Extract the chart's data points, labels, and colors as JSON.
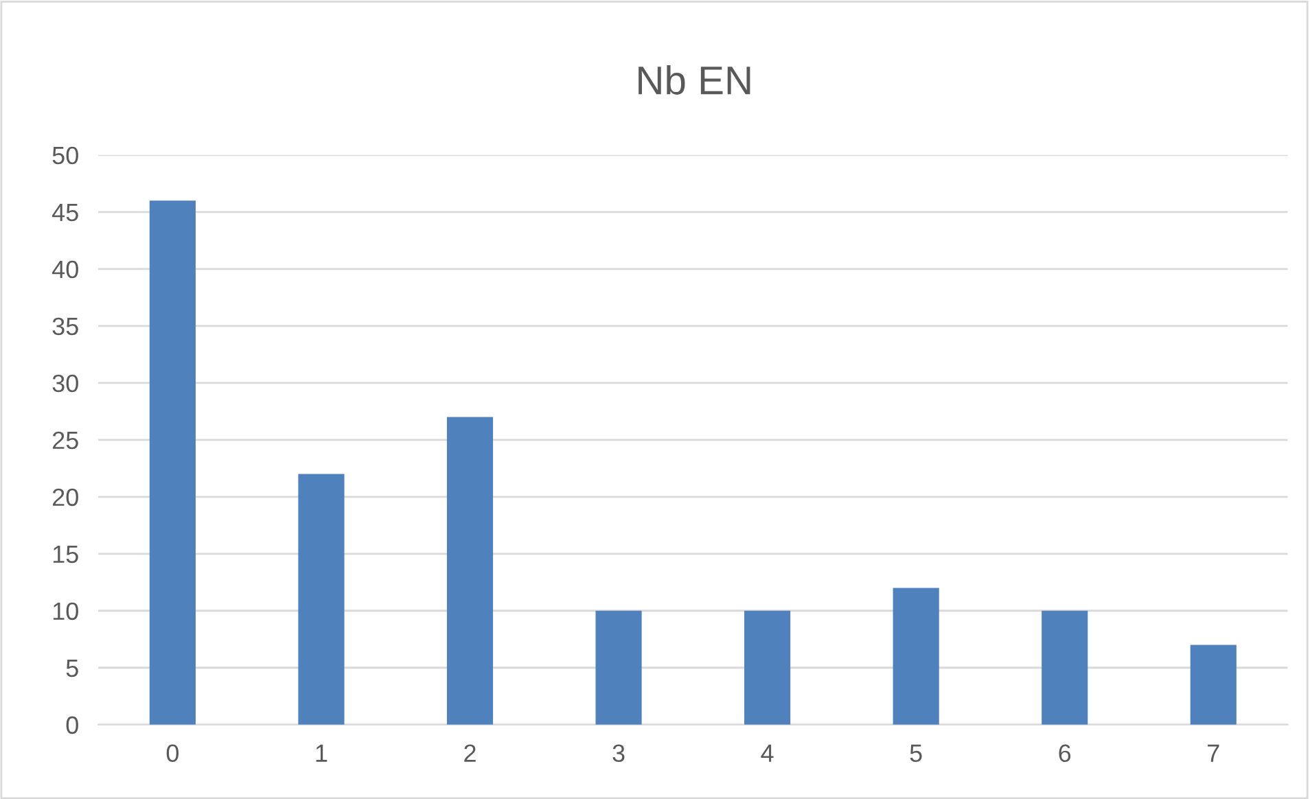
{
  "chart_data": {
    "type": "bar",
    "title": "Nb EN",
    "categories": [
      "0",
      "1",
      "2",
      "3",
      "4",
      "5",
      "6",
      "7"
    ],
    "values": [
      46,
      22,
      27,
      10,
      10,
      12,
      10,
      7
    ],
    "color": "#4f81bd",
    "ylim": [
      0,
      50
    ],
    "yticks": [
      0,
      5,
      10,
      15,
      20,
      25,
      30,
      35,
      40,
      45,
      50
    ],
    "grid": "y",
    "legend": false
  }
}
